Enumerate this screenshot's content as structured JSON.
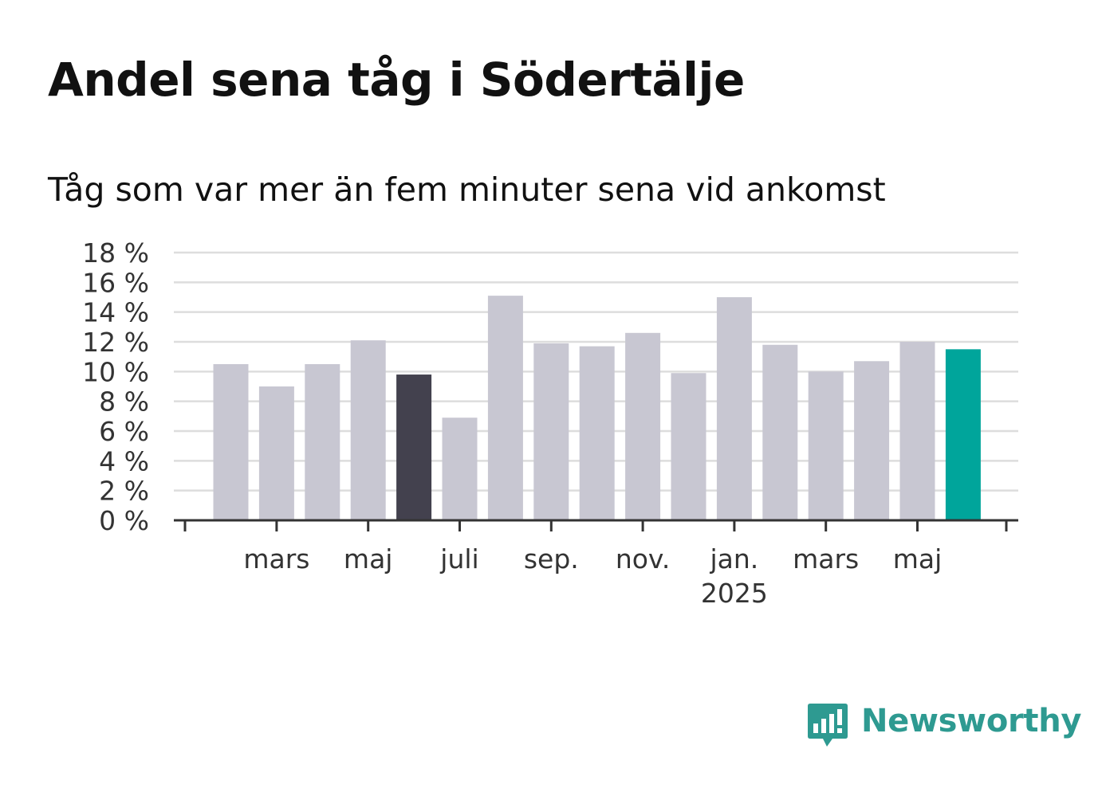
{
  "title": "Andel sena tåg i Södertälje",
  "subtitle": "Tåg som var mer än fem minuter sena vid ankomst",
  "brand": {
    "name": "Newsworthy",
    "color": "#2e9a91"
  },
  "colors": {
    "bar": "#c8c7d2",
    "highlight_dark": "#43414e",
    "highlight_current": "#00a59b",
    "grid": "#dddddd",
    "axis": "#333333"
  },
  "chart_data": {
    "type": "bar",
    "title": "Andel sena tåg i Södertälje",
    "subtitle": "Tåg som var mer än fem minuter sena vid ankomst",
    "unit": "%",
    "ylim": [
      0,
      18
    ],
    "yticks": [
      0,
      2,
      4,
      6,
      8,
      10,
      12,
      14,
      16,
      18
    ],
    "ytick_labels": [
      "0 %",
      "2 %",
      "4 %",
      "6 %",
      "8 %",
      "10 %",
      "12 %",
      "14 %",
      "16 %",
      "18 %"
    ],
    "xtick_labels": [
      {
        "label": "mars",
        "year": "",
        "at_bar": 1
      },
      {
        "label": "maj",
        "year": "",
        "at_bar": 3
      },
      {
        "label": "juli",
        "year": "",
        "at_bar": 5
      },
      {
        "label": "sep.",
        "year": "",
        "at_bar": 7
      },
      {
        "label": "nov.",
        "year": "",
        "at_bar": 9
      },
      {
        "label": "jan.",
        "year": "2025",
        "at_bar": 11
      },
      {
        "label": "mars",
        "year": "",
        "at_bar": 13
      },
      {
        "label": "maj",
        "year": "",
        "at_bar": 15
      }
    ],
    "values": [
      10.5,
      9.0,
      10.5,
      12.1,
      9.8,
      6.9,
      15.1,
      11.9,
      11.7,
      12.6,
      9.9,
      15.0,
      11.8,
      10.0,
      10.7,
      12.0,
      11.5
    ],
    "highlight": {
      "dark_index": 4,
      "current_index": 16
    },
    "grid": true,
    "legend": "none"
  }
}
